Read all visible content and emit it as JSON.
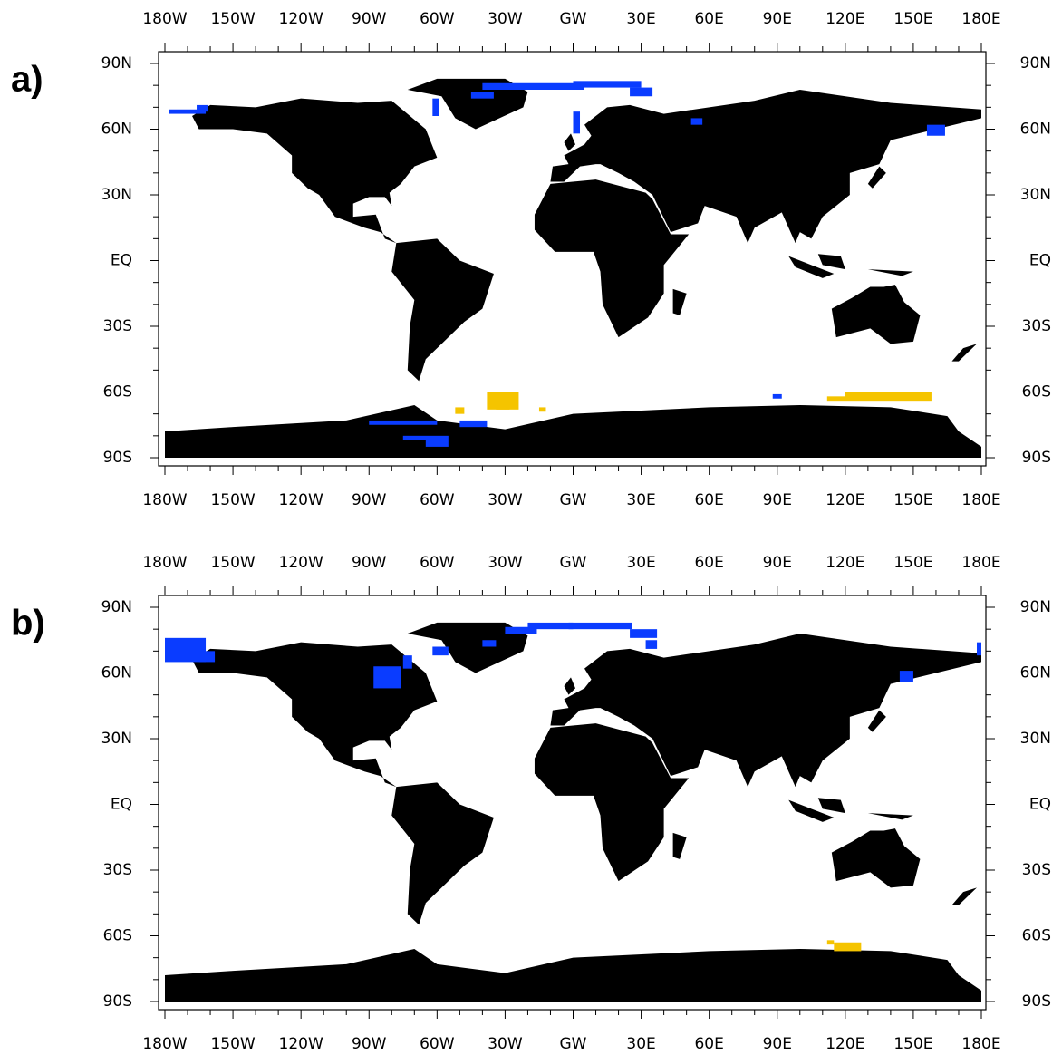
{
  "panels": [
    {
      "label": "a)",
      "lon_labels": [
        "180W",
        "150W",
        "120W",
        "90W",
        "60W",
        "30W",
        "GW",
        "30E",
        "60E",
        "90E",
        "120E",
        "150E",
        "180E"
      ],
      "lat_labels": [
        "90N",
        "60N",
        "30N",
        "EQ",
        "30S",
        "60S",
        "90S"
      ]
    },
    {
      "label": "b)",
      "lon_labels": [
        "180W",
        "150W",
        "120W",
        "90W",
        "60W",
        "30W",
        "GW",
        "30E",
        "60E",
        "90E",
        "120E",
        "150E",
        "180E"
      ],
      "lat_labels": [
        "90N",
        "60N",
        "30N",
        "EQ",
        "30S",
        "60S",
        "90S"
      ]
    }
  ]
}
